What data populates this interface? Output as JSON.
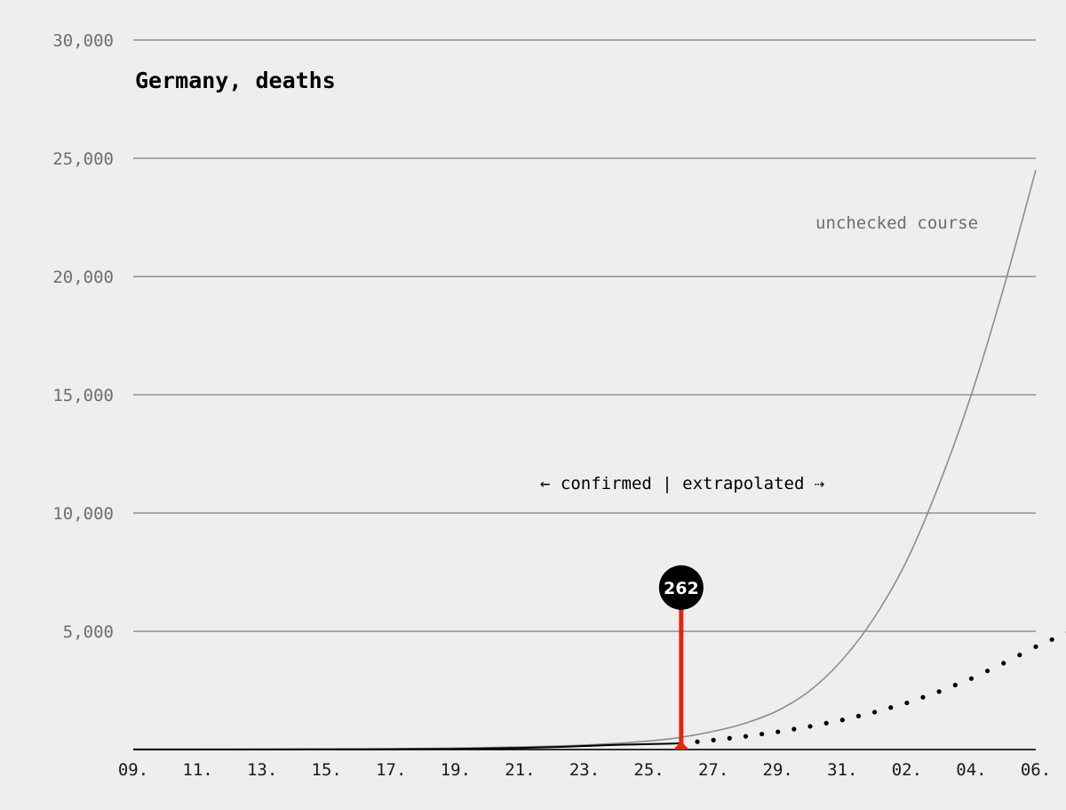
{
  "chart_data": {
    "type": "line",
    "title": "Germany, deaths",
    "xlabel": "",
    "ylabel": "",
    "ylim": [
      0,
      30000
    ],
    "y_ticks": [
      0,
      5000,
      10000,
      15000,
      20000,
      25000,
      30000
    ],
    "y_tick_labels": [
      "",
      "5,000",
      "10,000",
      "15,000",
      "20,000",
      "25,000",
      "30,000"
    ],
    "grid": true,
    "x_ticks": [
      "09.",
      "11.",
      "13.",
      "15.",
      "17.",
      "19.",
      "21.",
      "23.",
      "25.",
      "27.",
      "29.",
      "31.",
      "02.",
      "04.",
      "06."
    ],
    "x_day_count": 29,
    "series": [
      {
        "role": "unchecked",
        "style": "thin-grey",
        "color": "#8c8c8c",
        "x": [
          0,
          4,
          8,
          10,
          12,
          14,
          16,
          17,
          18,
          19,
          20,
          21,
          22,
          23,
          24,
          25,
          26,
          27,
          28,
          29
        ],
        "values": [
          2,
          10,
          30,
          60,
          110,
          190,
          360,
          520,
          770,
          1120,
          1650,
          2500,
          3800,
          5600,
          8000,
          11200,
          15000,
          19500,
          24500,
          24500
        ]
      },
      {
        "role": "confirmed",
        "style": "solid-black",
        "color": "#000000",
        "x": [
          0,
          2,
          4,
          6,
          8,
          10,
          11,
          12,
          13,
          14,
          15,
          16,
          17
        ],
        "values": [
          2,
          3,
          5,
          9,
          16,
          28,
          44,
          68,
          100,
          150,
          200,
          230,
          262
        ]
      },
      {
        "role": "extrapolated",
        "style": "dotted-black",
        "color": "#000000",
        "x": [
          17,
          18,
          19,
          20,
          21,
          22,
          23,
          24,
          25,
          26,
          27,
          28,
          29
        ],
        "values": [
          262,
          400,
          560,
          750,
          980,
          1250,
          1580,
          1970,
          2450,
          3000,
          3650,
          4350,
          4950
        ]
      }
    ],
    "marker": {
      "x": 17,
      "value": 262,
      "label": "262",
      "stem_color": "#e8230f",
      "bubble_color": "#000000",
      "stem_to": 6850
    },
    "annotations": {
      "unchecked_label": "unchecked course",
      "divider_label": "← confirmed | extrapolated ⇢"
    }
  }
}
